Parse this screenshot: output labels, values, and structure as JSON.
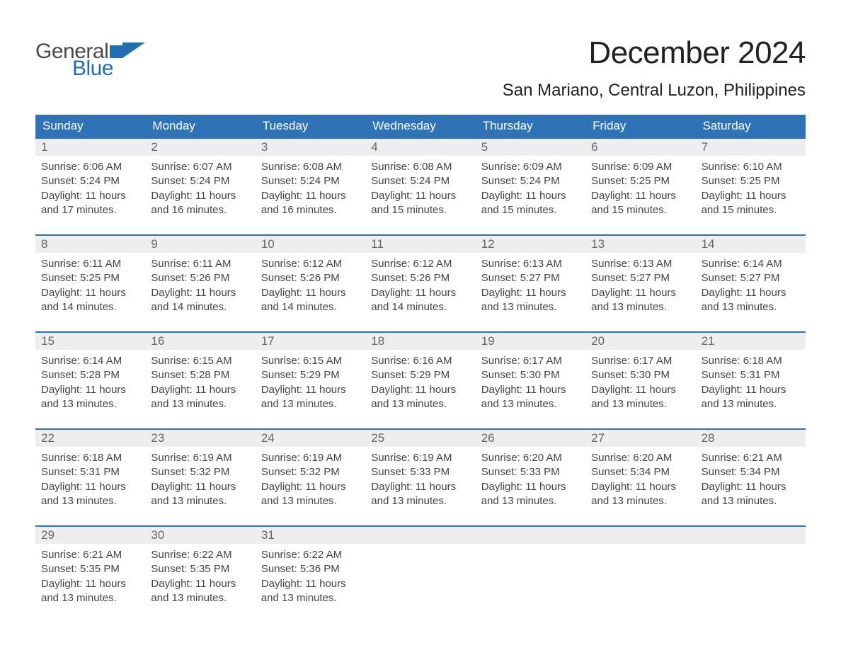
{
  "logo": {
    "word1": "General",
    "word2": "Blue",
    "color1": "#4a4a4a",
    "color2": "#1f6fb2",
    "flag_color": "#1f6fb2"
  },
  "title": "December 2024",
  "location": "San Mariano, Central Luzon, Philippines",
  "colors": {
    "header_bg": "#2f73b6",
    "header_text": "#ffffff",
    "daynum_bg": "#eeeeee",
    "daynum_text": "#666666",
    "body_text": "#444444",
    "rule": "#2f73b6",
    "page_bg": "#ffffff"
  },
  "typography": {
    "title_fontsize": 44,
    "location_fontsize": 24,
    "header_fontsize": 17,
    "daynum_fontsize": 17,
    "cell_fontsize": 15
  },
  "day_headers": [
    "Sunday",
    "Monday",
    "Tuesday",
    "Wednesday",
    "Thursday",
    "Friday",
    "Saturday"
  ],
  "weeks": [
    [
      {
        "num": "1",
        "sunrise": "6:06 AM",
        "sunset": "5:24 PM",
        "daylight_h": 11,
        "daylight_m": 17
      },
      {
        "num": "2",
        "sunrise": "6:07 AM",
        "sunset": "5:24 PM",
        "daylight_h": 11,
        "daylight_m": 16
      },
      {
        "num": "3",
        "sunrise": "6:08 AM",
        "sunset": "5:24 PM",
        "daylight_h": 11,
        "daylight_m": 16
      },
      {
        "num": "4",
        "sunrise": "6:08 AM",
        "sunset": "5:24 PM",
        "daylight_h": 11,
        "daylight_m": 15
      },
      {
        "num": "5",
        "sunrise": "6:09 AM",
        "sunset": "5:24 PM",
        "daylight_h": 11,
        "daylight_m": 15
      },
      {
        "num": "6",
        "sunrise": "6:09 AM",
        "sunset": "5:25 PM",
        "daylight_h": 11,
        "daylight_m": 15
      },
      {
        "num": "7",
        "sunrise": "6:10 AM",
        "sunset": "5:25 PM",
        "daylight_h": 11,
        "daylight_m": 15
      }
    ],
    [
      {
        "num": "8",
        "sunrise": "6:11 AM",
        "sunset": "5:25 PM",
        "daylight_h": 11,
        "daylight_m": 14
      },
      {
        "num": "9",
        "sunrise": "6:11 AM",
        "sunset": "5:26 PM",
        "daylight_h": 11,
        "daylight_m": 14
      },
      {
        "num": "10",
        "sunrise": "6:12 AM",
        "sunset": "5:26 PM",
        "daylight_h": 11,
        "daylight_m": 14
      },
      {
        "num": "11",
        "sunrise": "6:12 AM",
        "sunset": "5:26 PM",
        "daylight_h": 11,
        "daylight_m": 14
      },
      {
        "num": "12",
        "sunrise": "6:13 AM",
        "sunset": "5:27 PM",
        "daylight_h": 11,
        "daylight_m": 13
      },
      {
        "num": "13",
        "sunrise": "6:13 AM",
        "sunset": "5:27 PM",
        "daylight_h": 11,
        "daylight_m": 13
      },
      {
        "num": "14",
        "sunrise": "6:14 AM",
        "sunset": "5:27 PM",
        "daylight_h": 11,
        "daylight_m": 13
      }
    ],
    [
      {
        "num": "15",
        "sunrise": "6:14 AM",
        "sunset": "5:28 PM",
        "daylight_h": 11,
        "daylight_m": 13
      },
      {
        "num": "16",
        "sunrise": "6:15 AM",
        "sunset": "5:28 PM",
        "daylight_h": 11,
        "daylight_m": 13
      },
      {
        "num": "17",
        "sunrise": "6:15 AM",
        "sunset": "5:29 PM",
        "daylight_h": 11,
        "daylight_m": 13
      },
      {
        "num": "18",
        "sunrise": "6:16 AM",
        "sunset": "5:29 PM",
        "daylight_h": 11,
        "daylight_m": 13
      },
      {
        "num": "19",
        "sunrise": "6:17 AM",
        "sunset": "5:30 PM",
        "daylight_h": 11,
        "daylight_m": 13
      },
      {
        "num": "20",
        "sunrise": "6:17 AM",
        "sunset": "5:30 PM",
        "daylight_h": 11,
        "daylight_m": 13
      },
      {
        "num": "21",
        "sunrise": "6:18 AM",
        "sunset": "5:31 PM",
        "daylight_h": 11,
        "daylight_m": 13
      }
    ],
    [
      {
        "num": "22",
        "sunrise": "6:18 AM",
        "sunset": "5:31 PM",
        "daylight_h": 11,
        "daylight_m": 13
      },
      {
        "num": "23",
        "sunrise": "6:19 AM",
        "sunset": "5:32 PM",
        "daylight_h": 11,
        "daylight_m": 13
      },
      {
        "num": "24",
        "sunrise": "6:19 AM",
        "sunset": "5:32 PM",
        "daylight_h": 11,
        "daylight_m": 13
      },
      {
        "num": "25",
        "sunrise": "6:19 AM",
        "sunset": "5:33 PM",
        "daylight_h": 11,
        "daylight_m": 13
      },
      {
        "num": "26",
        "sunrise": "6:20 AM",
        "sunset": "5:33 PM",
        "daylight_h": 11,
        "daylight_m": 13
      },
      {
        "num": "27",
        "sunrise": "6:20 AM",
        "sunset": "5:34 PM",
        "daylight_h": 11,
        "daylight_m": 13
      },
      {
        "num": "28",
        "sunrise": "6:21 AM",
        "sunset": "5:34 PM",
        "daylight_h": 11,
        "daylight_m": 13
      }
    ],
    [
      {
        "num": "29",
        "sunrise": "6:21 AM",
        "sunset": "5:35 PM",
        "daylight_h": 11,
        "daylight_m": 13
      },
      {
        "num": "30",
        "sunrise": "6:22 AM",
        "sunset": "5:35 PM",
        "daylight_h": 11,
        "daylight_m": 13
      },
      {
        "num": "31",
        "sunrise": "6:22 AM",
        "sunset": "5:36 PM",
        "daylight_h": 11,
        "daylight_m": 13
      },
      null,
      null,
      null,
      null
    ]
  ],
  "labels": {
    "sunrise_prefix": "Sunrise: ",
    "sunset_prefix": "Sunset: ",
    "daylight_prefix": "Daylight: ",
    "hours_word": " hours",
    "and_word": "and ",
    "minutes_word": " minutes."
  }
}
